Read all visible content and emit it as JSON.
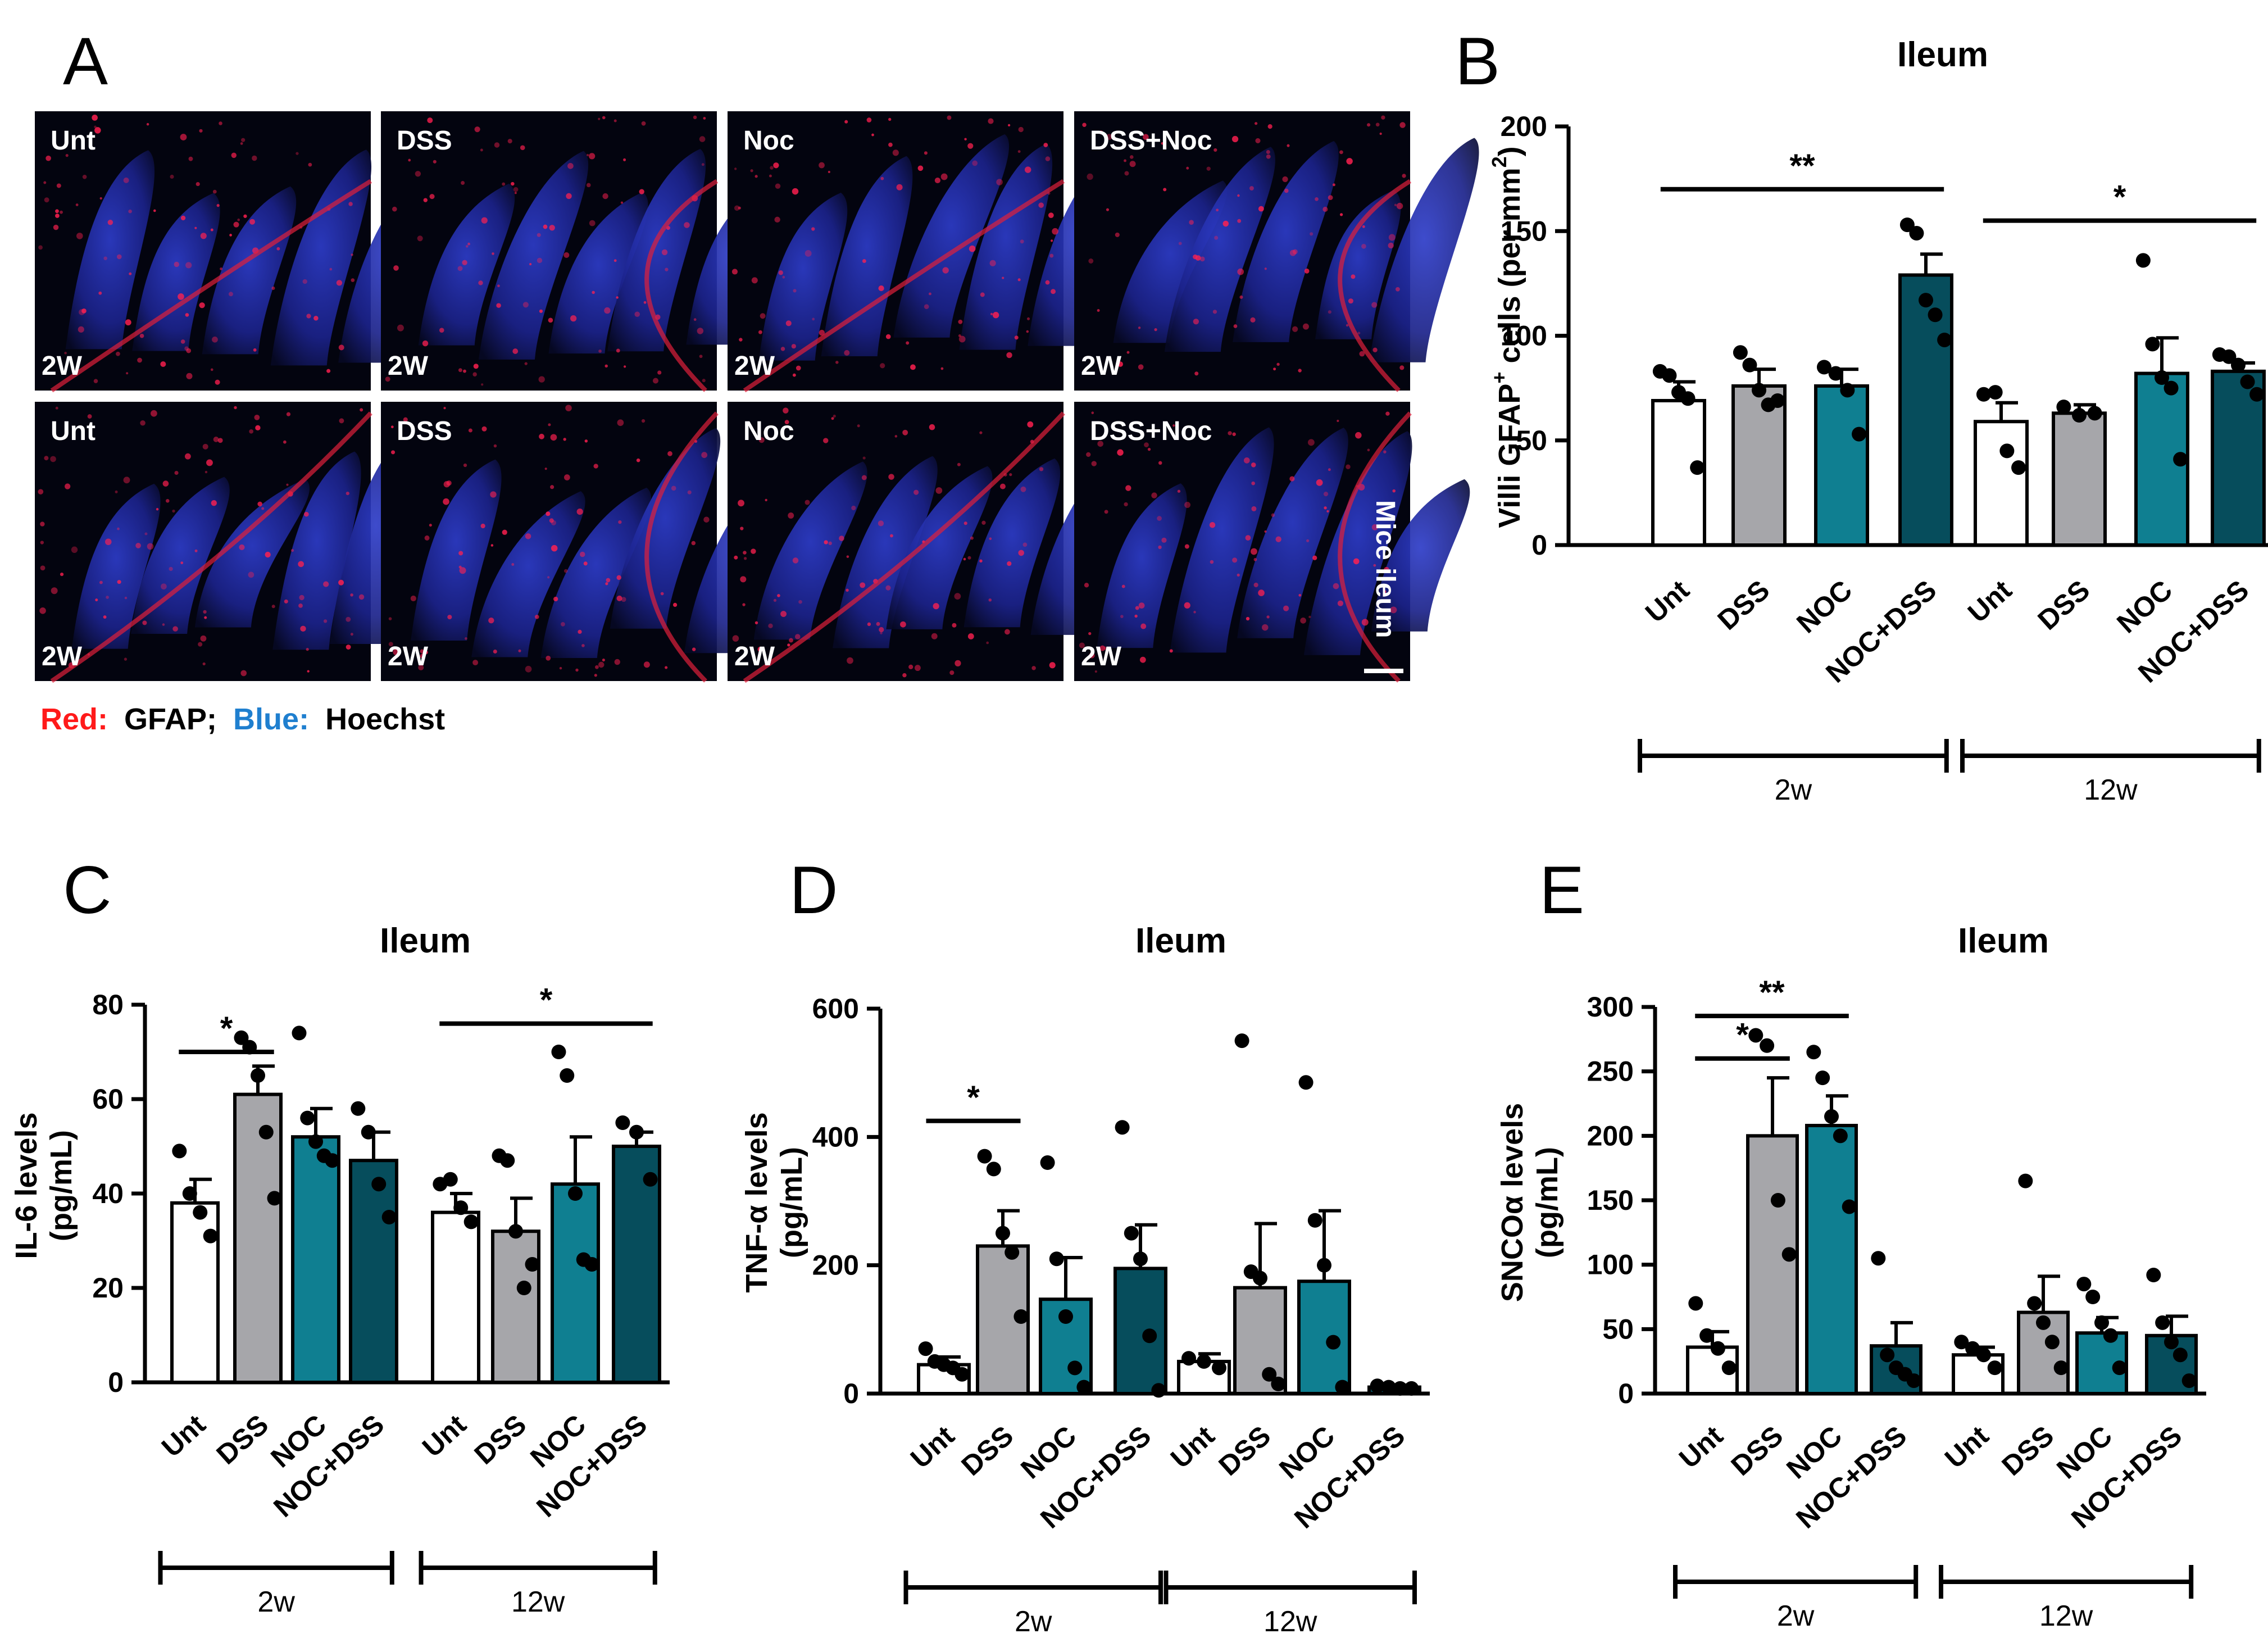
{
  "colors": {
    "unt": "#ffffff",
    "dss": "#a6a6aa",
    "noc": "#0f7f91",
    "nocdss": "#064d5c",
    "red": "#ff1a1a",
    "blue": "#1f7fcf"
  },
  "panel_a": {
    "letter": "A",
    "rows": [
      {
        "images": [
          {
            "label": "Unt",
            "time": "2W"
          },
          {
            "label": "DSS",
            "time": "2W"
          },
          {
            "label": "Noc",
            "time": "2W"
          },
          {
            "label": "DSS+Noc",
            "time": "2W"
          }
        ]
      },
      {
        "images": [
          {
            "label": "Unt",
            "time": "2W"
          },
          {
            "label": "DSS",
            "time": "2W"
          },
          {
            "label": "Noc",
            "time": "2W"
          },
          {
            "label": "DSS+Noc",
            "time": "2W"
          }
        ]
      }
    ],
    "side_label": "Mice ileum",
    "legend": {
      "red_key": "Red:",
      "red_value": "GFAP;",
      "blue_key": "Blue:",
      "blue_value": "Hoechst"
    }
  },
  "chart_data": [
    {
      "panel": "B",
      "type": "bar",
      "title": "Ileum",
      "ylabel": "Villi GFAP",
      "ylabel_sup1": "+",
      "ylabel_mid": " cells (per mm",
      "ylabel_sup2": "2",
      "ylabel_end": ")",
      "ylim": [
        0,
        200
      ],
      "yticks": [
        0,
        50,
        100,
        150,
        200
      ],
      "categories": [
        "Unt",
        "DSS",
        "NOC",
        "NOC+DSS",
        "Unt",
        "DSS",
        "NOC",
        "NOC+DSS"
      ],
      "groups": [
        "2w",
        "12w"
      ],
      "values": [
        69,
        76,
        76,
        129,
        59,
        63,
        82,
        83
      ],
      "errors": [
        9,
        8,
        8,
        10,
        9,
        4,
        17,
        4
      ],
      "points": [
        [
          83,
          81,
          73,
          70,
          37
        ],
        [
          92,
          86,
          74,
          67,
          69
        ],
        [
          85,
          82,
          74,
          53
        ],
        [
          153,
          149,
          117,
          110,
          98
        ],
        [
          72,
          73,
          45,
          37
        ],
        [
          66,
          62,
          63
        ],
        [
          136,
          96,
          80,
          75,
          41
        ],
        [
          91,
          90,
          86,
          78,
          72
        ]
      ],
      "significance": [
        {
          "from": 0,
          "to": 3,
          "label": "**",
          "y": 170
        },
        {
          "from": 4,
          "to": 7,
          "label": "*",
          "y": 155
        }
      ]
    },
    {
      "panel": "C",
      "type": "bar",
      "title": "Ileum",
      "ylabel": "IL-6 levels",
      "ylabel2": "(pg/mL)",
      "ylim": [
        0,
        80
      ],
      "yticks": [
        0,
        20,
        40,
        60,
        80
      ],
      "categories": [
        "Unt",
        "DSS",
        "NOC",
        "NOC+DSS",
        "Unt",
        "DSS",
        "NOC",
        "NOC+DSS"
      ],
      "groups": [
        "2w",
        "12w"
      ],
      "values": [
        38,
        61,
        52,
        47,
        36,
        32,
        42,
        50
      ],
      "errors": [
        5,
        6,
        6,
        6,
        4,
        7,
        10,
        3
      ],
      "points": [
        [
          49,
          40,
          36,
          31
        ],
        [
          73,
          71,
          65,
          53,
          39
        ],
        [
          74,
          56,
          51,
          48,
          47
        ],
        [
          58,
          53,
          42,
          35
        ],
        [
          42,
          43,
          37,
          34
        ],
        [
          48,
          47,
          32,
          20,
          25
        ],
        [
          70,
          65,
          40,
          26,
          25
        ],
        [
          55,
          53,
          43
        ]
      ],
      "significance": [
        {
          "from": 0,
          "to": 1,
          "label": "*",
          "y": 70
        },
        {
          "from": 4,
          "to": 7,
          "label": "*",
          "y": 76
        }
      ]
    },
    {
      "panel": "D",
      "type": "bar",
      "title": "Ileum",
      "ylabel": "TNF-α levels",
      "ylabel2": "(pg/mL)",
      "ylim": [
        0,
        600
      ],
      "yticks": [
        0,
        200,
        400,
        600
      ],
      "categories": [
        "Unt",
        "DSS",
        "NOC",
        "NOC+DSS",
        "Unt",
        "DSS",
        "NOC",
        "NOC+DSS"
      ],
      "groups": [
        "2w",
        "12w"
      ],
      "values": [
        45,
        230,
        147,
        195,
        50,
        165,
        175,
        10
      ],
      "errors": [
        12,
        55,
        65,
        68,
        12,
        100,
        110,
        3
      ],
      "points": [
        [
          70,
          50,
          45,
          40,
          30
        ],
        [
          370,
          350,
          250,
          220,
          120
        ],
        [
          360,
          210,
          120,
          40,
          10
        ],
        [
          415,
          250,
          210,
          90,
          5
        ],
        [
          55,
          50,
          40
        ],
        [
          550,
          190,
          180,
          30,
          15
        ],
        [
          485,
          270,
          200,
          80,
          10
        ],
        [
          12,
          10,
          8,
          8
        ]
      ],
      "significance": [
        {
          "from": 0,
          "to": 1,
          "label": "*",
          "y": 425
        }
      ]
    },
    {
      "panel": "E",
      "type": "bar",
      "title": "Ileum",
      "ylabel": "SNCOα levels",
      "ylabel2": "(pg/mL)",
      "ylim": [
        0,
        300
      ],
      "yticks": [
        0,
        50,
        100,
        150,
        200,
        250,
        300
      ],
      "categories": [
        "Unt",
        "DSS",
        "NOC",
        "NOC+DSS",
        "Unt",
        "DSS",
        "NOC",
        "NOC+DSS"
      ],
      "groups": [
        "2w",
        "12w"
      ],
      "values": [
        36,
        200,
        208,
        37,
        30,
        63,
        47,
        45
      ],
      "errors": [
        12,
        45,
        23,
        18,
        6,
        28,
        12,
        15
      ],
      "points": [
        [
          70,
          45,
          35,
          20
        ],
        [
          278,
          270,
          150,
          108
        ],
        [
          265,
          245,
          215,
          200,
          145
        ],
        [
          105,
          30,
          20,
          15,
          10
        ],
        [
          40,
          35,
          30,
          20
        ],
        [
          165,
          70,
          55,
          40,
          20
        ],
        [
          85,
          75,
          55,
          45,
          20
        ],
        [
          92,
          55,
          40,
          30,
          10
        ]
      ],
      "significance": [
        {
          "from": 0,
          "to": 1,
          "label": "*",
          "y": 260
        },
        {
          "from": 0,
          "to": 2,
          "label": "**",
          "y": 293
        }
      ]
    }
  ]
}
